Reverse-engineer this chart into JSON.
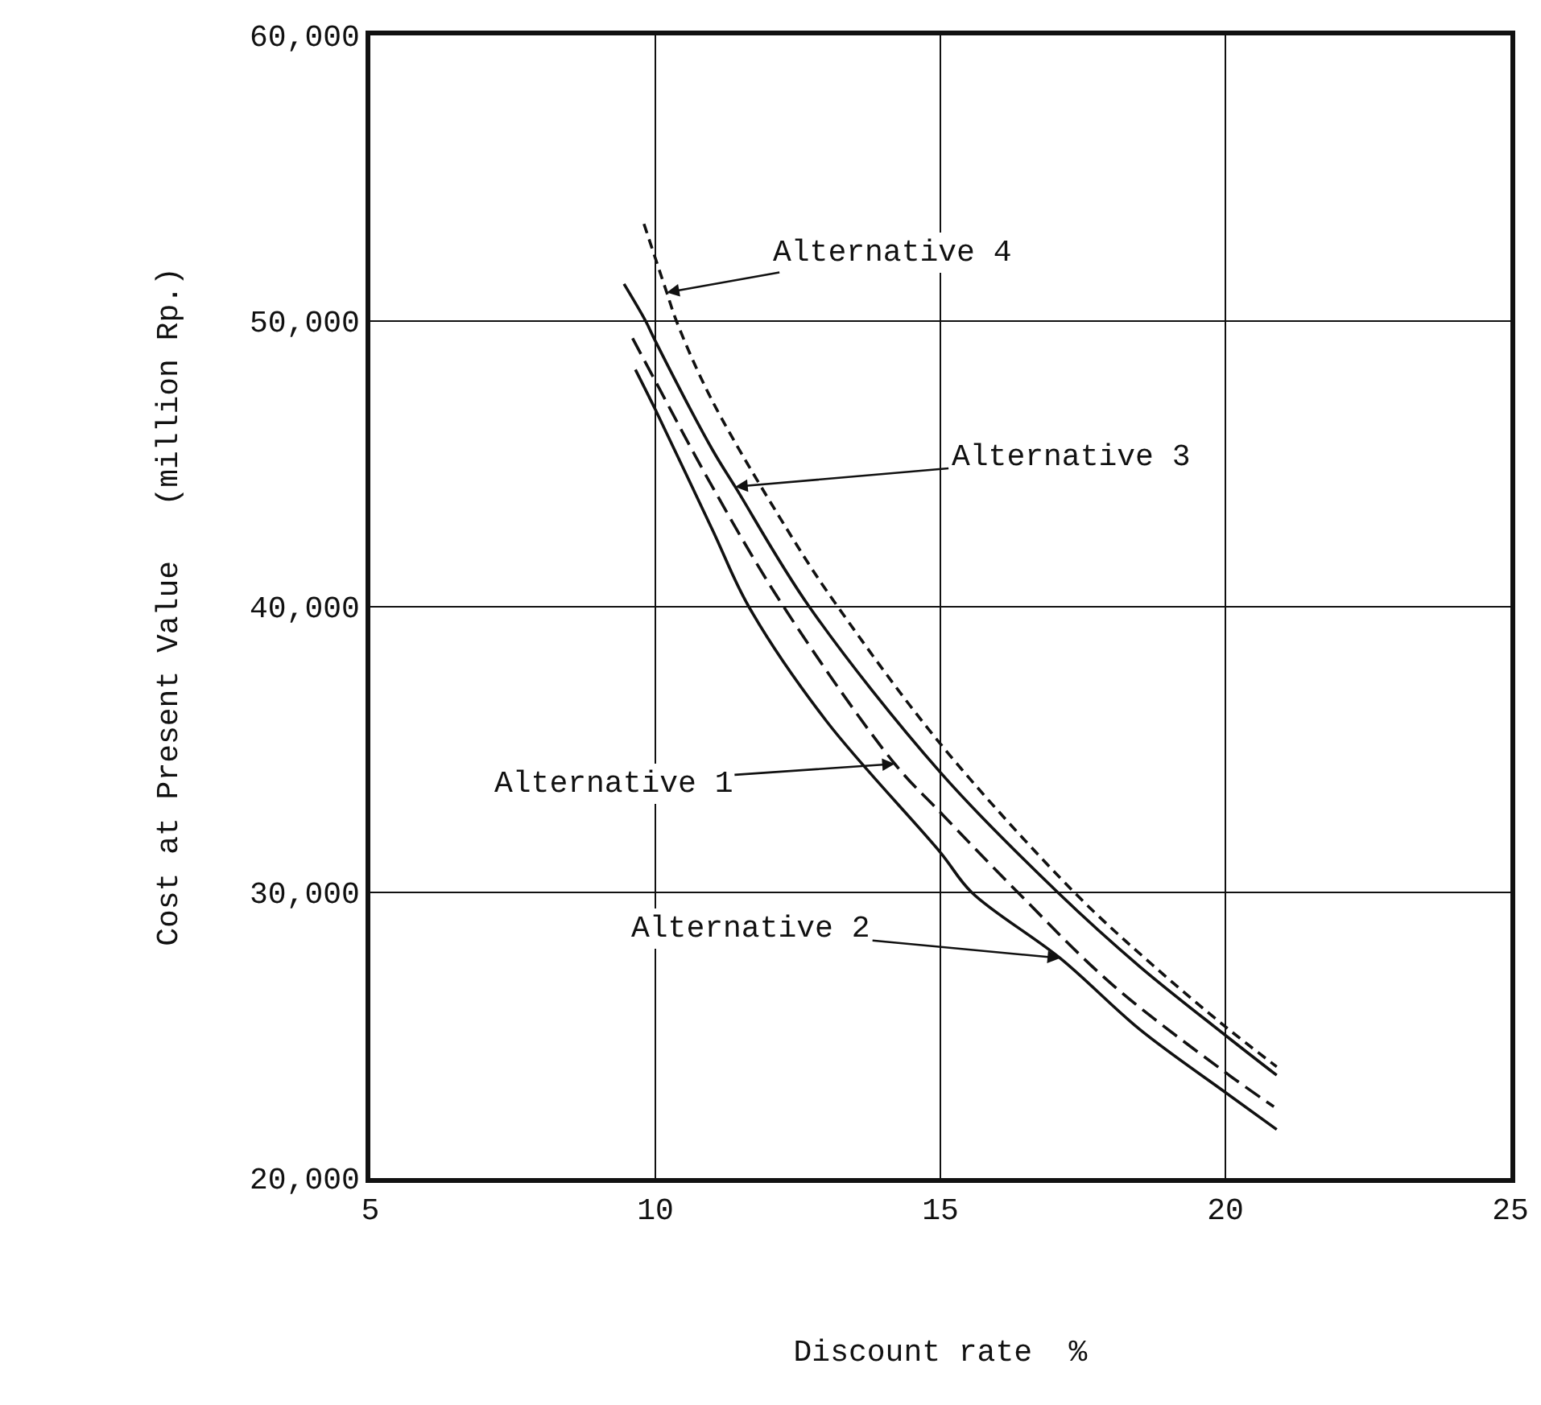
{
  "chart_data": {
    "type": "line",
    "xlabel": "Discount rate  %",
    "ylabel": "Cost at Present Value   (million Rp.)",
    "xlim": [
      5,
      25
    ],
    "xticks": [
      5,
      10,
      15,
      20,
      25
    ],
    "ylim": [
      20000,
      60000
    ],
    "yticks": [
      {
        "value": 20000,
        "label": "20,000"
      },
      {
        "value": 30000,
        "label": "30,000"
      },
      {
        "value": 40000,
        "label": "40,000"
      },
      {
        "value": 50000,
        "label": "50,000"
      },
      {
        "value": 60000,
        "label": "60,000"
      }
    ],
    "grid": true,
    "marker": "none",
    "series": [
      {
        "color": "#111111",
        "line_style": "dashed",
        "x": [
          9.6,
          10,
          11,
          12.25,
          14.2,
          15,
          16.36,
          18,
          20,
          20.85
        ],
        "values": [
          49400,
          47900,
          44200,
          40000,
          34500,
          32800,
          30000,
          26800,
          23700,
          22500
        ]
      },
      {
        "color": "#111111",
        "line_style": "solid",
        "x": [
          9.65,
          10,
          11,
          11.64,
          13,
          15,
          15.55,
          17.1,
          18.5,
          20,
          20.9
        ],
        "values": [
          48300,
          46900,
          42700,
          40000,
          36000,
          31400,
          30000,
          27700,
          25200,
          23000,
          21700
        ]
      },
      {
        "color": "#111111",
        "line_style": "solid",
        "x": [
          9.45,
          9.83,
          10,
          11,
          11.4,
          12.7,
          15,
          17.06,
          18.5,
          20,
          20.9
        ],
        "values": [
          51300,
          50000,
          49300,
          45500,
          44200,
          40000,
          34200,
          30000,
          27400,
          25000,
          23600
        ]
      },
      {
        "color": "#111111",
        "line_style": "dotted",
        "x": [
          9.8,
          10.2,
          10.37,
          11,
          12.5,
          13.2,
          15,
          17.35,
          18.7,
          20,
          20.9
        ],
        "values": [
          53400,
          51000,
          50000,
          47200,
          42100,
          40000,
          35200,
          30000,
          27500,
          25300,
          23900
        ]
      }
    ],
    "annotations": [
      {
        "text": "Alternative 1",
        "x": 14.2,
        "y": 34500
      },
      {
        "text": "Alternative 2",
        "x": 17.1,
        "y": 27700
      },
      {
        "text": "Alternative 3",
        "x": 11.4,
        "y": 44200
      },
      {
        "text": "Alternative 4",
        "x": 10.2,
        "y": 51000
      }
    ]
  }
}
